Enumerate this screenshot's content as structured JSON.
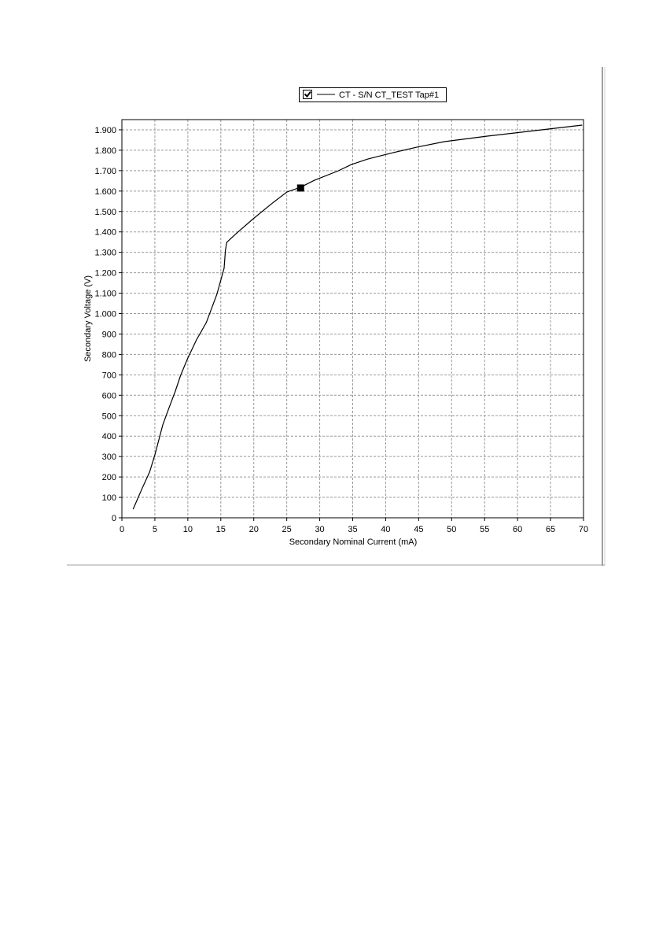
{
  "chart_data": {
    "type": "line",
    "xlabel": "Secondary Nominal Current (mA)",
    "ylabel": "Secondary Voltage (V)",
    "series": [
      {
        "name": "CT - S/N CT_TEST Tap#1",
        "color": "#000000",
        "x": [
          1.7,
          3.0,
          4.2,
          5.0,
          6.2,
          7.2,
          8.1,
          8.9,
          9.9,
          11.3,
          12.8,
          14.4,
          15.5,
          15.7,
          15.9,
          17.3,
          19.9,
          22.7,
          25.0,
          27.1,
          29.2,
          32.8,
          34.8,
          37.3,
          41.1,
          44.7,
          48.9,
          55.4,
          62.6,
          69.8
        ],
        "values": [
          42,
          139,
          224,
          308,
          455,
          543,
          620,
          697,
          775,
          871,
          956,
          1094,
          1222,
          1310,
          1349,
          1391,
          1464,
          1538,
          1595,
          1619,
          1653,
          1699,
          1730,
          1757,
          1788,
          1815,
          1842,
          1869,
          1896,
          1923
        ]
      }
    ],
    "marker": {
      "x": 27.1,
      "y": 1615
    },
    "xlim": [
      0,
      70
    ],
    "xticks": [
      0,
      5,
      10,
      15,
      20,
      25,
      30,
      35,
      40,
      45,
      50,
      55,
      60,
      65,
      70
    ],
    "ylim": [
      0,
      1950
    ],
    "yticks": [
      0,
      100,
      200,
      300,
      400,
      500,
      600,
      700,
      800,
      900,
      {
        "value": 1000,
        "label": "1.000"
      },
      {
        "value": 1100,
        "label": "1.100"
      },
      {
        "value": 1200,
        "label": "1.200"
      },
      {
        "value": 1300,
        "label": "1.300"
      },
      {
        "value": 1400,
        "label": "1.400"
      },
      {
        "value": 1500,
        "label": "1.500"
      },
      {
        "value": 1600,
        "label": "1.600"
      },
      {
        "value": 1700,
        "label": "1.700"
      },
      {
        "value": 1800,
        "label": "1.800"
      },
      {
        "value": 1900,
        "label": "1.900"
      }
    ],
    "grid": true
  }
}
